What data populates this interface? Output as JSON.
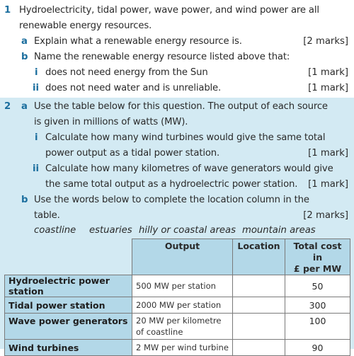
{
  "q1": {
    "number": "1",
    "intro_line1": "Hydroelectricity, tidal power, wave power, and wind power are all",
    "intro_line2": "renewable energy resources.",
    "a_letter": "a",
    "a_text": "Explain what a renewable energy resource is.",
    "a_marks": "[2 marks]",
    "b_letter": "b",
    "b_text": "Name the renewable energy resource listed above that:",
    "b_i_letter": "i",
    "b_i_text": "does not need energy from the Sun",
    "b_i_marks": "[1 mark]",
    "b_ii_letter": "ii",
    "b_ii_text": "does not need water and is unreliable.",
    "b_ii_marks": "[1 mark]"
  },
  "q2": {
    "number": "2",
    "a_letter": "a",
    "a_line1": "Use the table below for this question. The output of each source",
    "a_line2": "is given in millions of watts (MW).",
    "i_letter": "i",
    "i_line1": "Calculate how many wind turbines would give the same total",
    "i_line2": "power output as a tidal power station.",
    "i_marks": "[1 mark]",
    "ii_letter": "ii",
    "ii_line1": "Calculate how many kilometres of wave generators would give",
    "ii_line2": "the same total output as a hydroelectric power station.",
    "ii_marks": "[1 mark]",
    "b_letter": "b",
    "b_line1": "Use the words below to complete the location column in the",
    "b_line2": "table.",
    "b_marks": "[2 marks]",
    "words": [
      "coastline",
      "estuaries",
      "hilly or coastal areas",
      "mountain areas"
    ]
  },
  "table": {
    "headers": {
      "output": "Output",
      "location": "Location",
      "cost_line1": "Total cost in",
      "cost_line2": "£ per MW"
    },
    "rows": [
      {
        "label": "Hydroelectric power station",
        "output_line1": "500 MW per station",
        "output_line2": "",
        "location": "",
        "cost": "50"
      },
      {
        "label": "Tidal power station",
        "output_line1": "2000 MW per station",
        "output_line2": "",
        "location": "",
        "cost": "300"
      },
      {
        "label": "Wave power generators",
        "output_line1": "20 MW per kilometre",
        "output_line2": "of coastline",
        "location": "",
        "cost": "100"
      },
      {
        "label": "Wind turbines",
        "output_line1": "2 MW per wind turbine",
        "output_line2": "",
        "location": "",
        "cost": "90"
      }
    ]
  },
  "colors": {
    "accent_number": "#1b6e9e",
    "q2_background": "#d3eaf3",
    "table_header_bg": "#b3d8e8"
  }
}
